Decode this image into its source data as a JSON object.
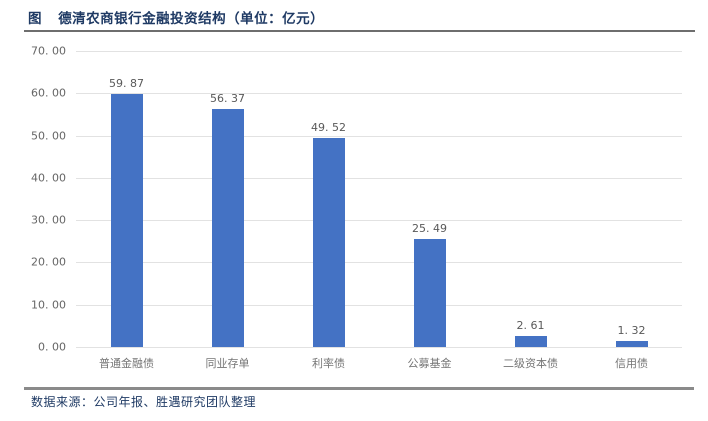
{
  "header": {
    "prefix": "图",
    "title": "德清农商银行金融投资结构（单位：亿元）"
  },
  "footer": {
    "source": "数据来源：公司年报、胜遇研究团队整理"
  },
  "chart_data": {
    "type": "bar",
    "title": "德清农商银行金融投资结构（单位：亿元）",
    "unit": "亿元",
    "categories": [
      "普通金融债",
      "同业存单",
      "利率债",
      "公募基金",
      "二级资本债",
      "信用债"
    ],
    "values": [
      59.87,
      56.37,
      49.52,
      25.49,
      2.61,
      1.32
    ],
    "value_labels": [
      "59. 87",
      "56. 37",
      "49. 52",
      "25. 49",
      "2. 61",
      "1. 32"
    ],
    "xlabel": "",
    "ylabel": "",
    "ylim": [
      0,
      70
    ],
    "ytick_labels": [
      "0. 00",
      "10. 00",
      "20. 00",
      "30. 00",
      "40. 00",
      "50. 00",
      "60. 00",
      "70. 00"
    ],
    "grid": true,
    "legend_position": "none",
    "bar_color": "#4472C4"
  },
  "colors": {
    "title_navy": "#1F3A64",
    "bar_blue": "#4472C4",
    "gridline_gray": "#E2E2E2",
    "label_gray": "#595959",
    "top_rule_gray": "#6E6E6E",
    "bottom_rule_gray": "#8A8A8A"
  }
}
